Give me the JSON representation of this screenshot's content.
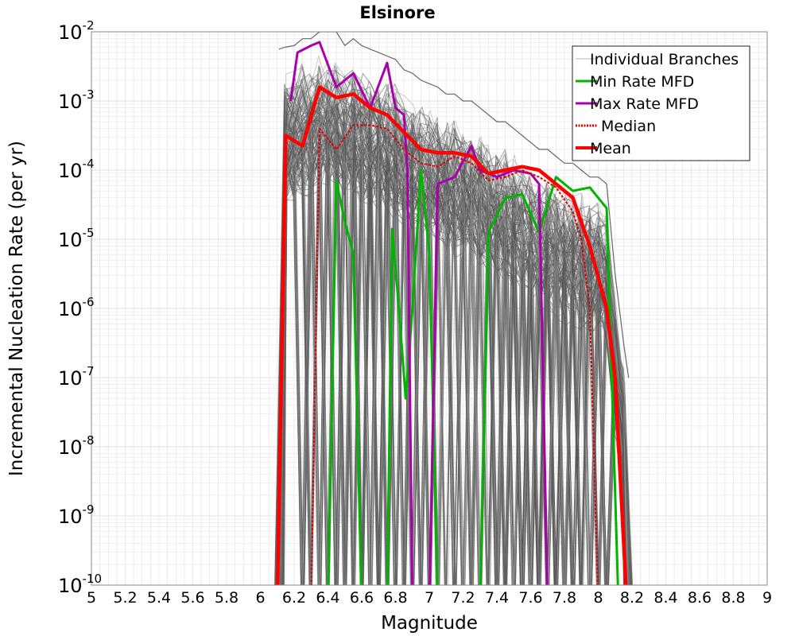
{
  "chart_data": {
    "type": "line",
    "title": "Elsinore",
    "xlabel": "Magnitude",
    "ylabel": "Incremental Nucleation Rate (per yr)",
    "xlim": [
      5,
      9
    ],
    "ylim_log10": [
      -10,
      -2
    ],
    "x_ticks": [
      "5",
      "5.2",
      "5.4",
      "5.6",
      "5.8",
      "6",
      "6.2",
      "6.4",
      "6.6",
      "6.8",
      "7",
      "7.2",
      "7.4",
      "7.6",
      "7.8",
      "8",
      "8.2",
      "8.4",
      "8.6",
      "8.8",
      "9"
    ],
    "y_ticks": [
      {
        "base": "10",
        "exp": "-2",
        "value": -2
      },
      {
        "base": "10",
        "exp": "-3",
        "value": -3
      },
      {
        "base": "10",
        "exp": "-4",
        "value": -4
      },
      {
        "base": "10",
        "exp": "-5",
        "value": -5
      },
      {
        "base": "10",
        "exp": "-6",
        "value": -6
      },
      {
        "base": "10",
        "exp": "-7",
        "value": -7
      },
      {
        "base": "10",
        "exp": "-8",
        "value": -8
      },
      {
        "base": "10",
        "exp": "-9",
        "value": -9
      },
      {
        "base": "10",
        "exp": "-10",
        "value": -10
      }
    ],
    "legend": {
      "position": "top-right",
      "entries": [
        {
          "label": "Individual Branches",
          "color": "#b4b4b4",
          "style": "thin"
        },
        {
          "label": "Min Rate MFD",
          "color": "#00b400",
          "style": "solid"
        },
        {
          "label": "Max Rate MFD",
          "color": "#aa00aa",
          "style": "solid"
        },
        {
          "label": "Median",
          "color": "#e00000",
          "style": "dotted"
        },
        {
          "label": "Mean",
          "color": "#ff0000",
          "style": "thick"
        }
      ]
    },
    "series": [
      {
        "name": "Individual Branches (envelope)",
        "color": "#555555",
        "points": [
          [
            6.11,
            -2.25
          ],
          [
            6.15,
            -2.22
          ],
          [
            6.2,
            -2.2
          ],
          [
            6.25,
            -2.1
          ],
          [
            6.3,
            -2.1
          ],
          [
            6.35,
            -2.0
          ],
          [
            6.4,
            -2.0
          ],
          [
            6.45,
            -2.0
          ],
          [
            6.5,
            -2.2
          ],
          [
            6.55,
            -2.1
          ],
          [
            6.6,
            -2.2
          ],
          [
            6.65,
            -2.25
          ],
          [
            6.7,
            -2.3
          ],
          [
            6.75,
            -2.35
          ],
          [
            6.8,
            -2.4
          ],
          [
            6.85,
            -2.55
          ],
          [
            6.9,
            -2.6
          ],
          [
            6.95,
            -2.7
          ],
          [
            7.0,
            -2.75
          ],
          [
            7.05,
            -2.8
          ],
          [
            7.1,
            -2.9
          ],
          [
            7.15,
            -2.9
          ],
          [
            7.2,
            -3.0
          ],
          [
            7.25,
            -3.0
          ],
          [
            7.3,
            -3.1
          ],
          [
            7.35,
            -3.2
          ],
          [
            7.4,
            -3.3
          ],
          [
            7.45,
            -3.3
          ],
          [
            7.5,
            -3.4
          ],
          [
            7.55,
            -3.5
          ],
          [
            7.6,
            -3.6
          ],
          [
            7.65,
            -3.7
          ],
          [
            7.7,
            -3.7
          ],
          [
            7.75,
            -3.8
          ],
          [
            7.8,
            -3.9
          ],
          [
            7.85,
            -3.9
          ],
          [
            7.9,
            -4.0
          ],
          [
            7.95,
            -4.1
          ],
          [
            8.0,
            -4.1
          ],
          [
            8.05,
            -4.2
          ],
          [
            8.1,
            -5.5
          ],
          [
            8.15,
            -6.5
          ],
          [
            8.18,
            -7.0
          ]
        ]
      },
      {
        "name": "Min Rate MFD",
        "color": "#00b400",
        "points": [
          [
            6.4,
            -10.3
          ],
          [
            6.45,
            -4.15
          ],
          [
            6.5,
            -4.75
          ],
          [
            6.55,
            -5.2
          ],
          [
            6.6,
            -10.3
          ],
          [
            6.75,
            -10.3
          ],
          [
            6.78,
            -4.85
          ],
          [
            6.82,
            -6.0
          ],
          [
            6.86,
            -7.3
          ],
          [
            6.9,
            -6.0
          ],
          [
            6.95,
            -4.0
          ],
          [
            7.0,
            -5.2
          ],
          [
            7.05,
            -10.3
          ],
          [
            7.3,
            -10.3
          ],
          [
            7.35,
            -4.9
          ],
          [
            7.45,
            -4.4
          ],
          [
            7.55,
            -4.35
          ],
          [
            7.65,
            -4.9
          ],
          [
            7.75,
            -4.1
          ],
          [
            7.85,
            -4.3
          ],
          [
            7.95,
            -4.25
          ],
          [
            8.05,
            -4.55
          ],
          [
            8.12,
            -10.3
          ]
        ]
      },
      {
        "name": "Max Rate MFD",
        "color": "#aa00aa",
        "points": [
          [
            6.18,
            -3.0
          ],
          [
            6.22,
            -2.3
          ],
          [
            6.3,
            -2.2
          ],
          [
            6.35,
            -2.15
          ],
          [
            6.45,
            -2.8
          ],
          [
            6.55,
            -2.6
          ],
          [
            6.65,
            -3.1
          ],
          [
            6.75,
            -2.45
          ],
          [
            6.8,
            -3.1
          ],
          [
            6.85,
            -3.2
          ],
          [
            6.87,
            -4.0
          ],
          [
            6.9,
            -10.3
          ],
          [
            7.0,
            -10.3
          ],
          [
            7.05,
            -4.2
          ],
          [
            7.15,
            -4.1
          ],
          [
            7.25,
            -3.65
          ],
          [
            7.3,
            -4.0
          ],
          [
            7.4,
            -4.1
          ],
          [
            7.5,
            -4.0
          ],
          [
            7.6,
            -4.05
          ],
          [
            7.65,
            -4.2
          ],
          [
            7.7,
            -10.3
          ]
        ]
      },
      {
        "name": "Median",
        "color": "#e00000",
        "points": [
          [
            6.3,
            -10.3
          ],
          [
            6.35,
            -3.4
          ],
          [
            6.45,
            -3.7
          ],
          [
            6.55,
            -3.35
          ],
          [
            6.65,
            -3.35
          ],
          [
            6.75,
            -3.4
          ],
          [
            6.85,
            -3.7
          ],
          [
            6.95,
            -3.9
          ],
          [
            7.05,
            -3.95
          ],
          [
            7.15,
            -3.8
          ],
          [
            7.25,
            -3.9
          ],
          [
            7.35,
            -4.15
          ],
          [
            7.45,
            -4.1
          ],
          [
            7.55,
            -4.0
          ],
          [
            7.65,
            -4.1
          ],
          [
            7.75,
            -4.25
          ],
          [
            7.85,
            -4.6
          ],
          [
            7.9,
            -5.0
          ],
          [
            7.95,
            -6.0
          ],
          [
            8.0,
            -10.3
          ]
        ]
      },
      {
        "name": "Mean",
        "color": "#ff0000",
        "points": [
          [
            6.1,
            -10.3
          ],
          [
            6.15,
            -3.5
          ],
          [
            6.25,
            -3.65
          ],
          [
            6.35,
            -2.8
          ],
          [
            6.45,
            -2.95
          ],
          [
            6.55,
            -2.9
          ],
          [
            6.65,
            -3.1
          ],
          [
            6.75,
            -3.2
          ],
          [
            6.85,
            -3.45
          ],
          [
            6.95,
            -3.7
          ],
          [
            7.05,
            -3.75
          ],
          [
            7.15,
            -3.75
          ],
          [
            7.25,
            -3.8
          ],
          [
            7.35,
            -4.05
          ],
          [
            7.45,
            -4.0
          ],
          [
            7.55,
            -3.95
          ],
          [
            7.65,
            -4.0
          ],
          [
            7.75,
            -4.2
          ],
          [
            7.85,
            -4.4
          ],
          [
            7.95,
            -5.1
          ],
          [
            8.05,
            -6.0
          ],
          [
            8.1,
            -7.0
          ],
          [
            8.17,
            -10.3
          ]
        ]
      }
    ]
  }
}
